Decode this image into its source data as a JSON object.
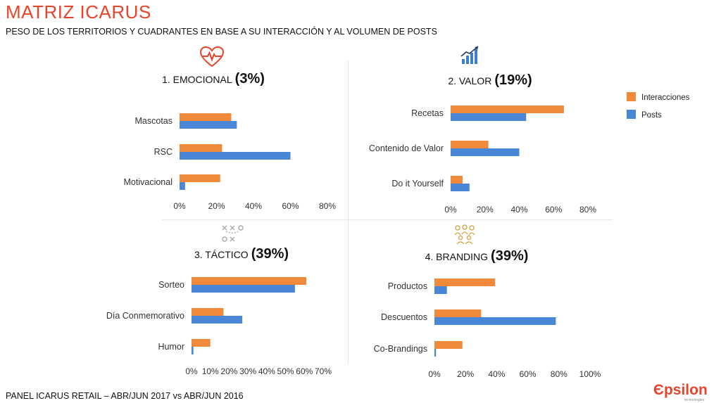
{
  "header": {
    "title": "MATRIZ ICARUS",
    "subtitle": "PESO DE LOS TERRITORIOS Y CUADRANTES EN BASE A SU INTERACCIÓN Y AL VOLUMEN DE POSTS"
  },
  "footer": {
    "text": "PANEL ICARUS RETAIL – ABR/JUN 2017 vs ABR/JUN 2016"
  },
  "brand": {
    "name": "Єpsilon",
    "sub": "technologies"
  },
  "legend": {
    "items": [
      "Interacciones",
      "Posts"
    ]
  },
  "colors": {
    "interacciones": "#f08a3a",
    "posts": "#4a86d6",
    "accent": "#e8442b"
  },
  "chart_data": [
    {
      "type": "bar",
      "orientation": "horizontal",
      "title": "1. EMOCIONAL",
      "percent_label": "(3%)",
      "icon": "heart-pulse-icon",
      "categories": [
        "Mascotas",
        "RSC",
        "Motivacional"
      ],
      "series": [
        {
          "name": "Interacciones",
          "values": [
            28,
            23,
            22
          ]
        },
        {
          "name": "Posts",
          "values": [
            31,
            60,
            3
          ]
        }
      ],
      "xlim": [
        0,
        80
      ],
      "xticks": [
        "0%",
        "20%",
        "40%",
        "60%",
        "80%"
      ]
    },
    {
      "type": "bar",
      "orientation": "horizontal",
      "title": "2. VALOR",
      "percent_label": "(19%)",
      "icon": "growth-chart-icon",
      "categories": [
        "Recetas",
        "Contenido de Valor",
        "Do it Yourself"
      ],
      "series": [
        {
          "name": "Interacciones",
          "values": [
            66,
            22,
            7
          ]
        },
        {
          "name": "Posts",
          "values": [
            44,
            40,
            11
          ]
        }
      ],
      "xlim": [
        0,
        80
      ],
      "xticks": [
        "0%",
        "20%",
        "40%",
        "60%",
        "80%"
      ]
    },
    {
      "type": "bar",
      "orientation": "horizontal",
      "title": "3. TÁCTICO",
      "percent_label": "(39%)",
      "icon": "tactics-icon",
      "categories": [
        "Sorteo",
        "Día Conmemorativo",
        "Humor"
      ],
      "series": [
        {
          "name": "Interacciones",
          "values": [
            61,
            17,
            10
          ]
        },
        {
          "name": "Posts",
          "values": [
            55,
            27,
            1
          ]
        }
      ],
      "xlim": [
        0,
        70
      ],
      "xticks": [
        "0%",
        "10%",
        "20%",
        "30%",
        "40%",
        "50%",
        "60%",
        "70%"
      ]
    },
    {
      "type": "bar",
      "orientation": "horizontal",
      "title": "4. BRANDING",
      "percent_label": "(39%)",
      "icon": "people-group-icon",
      "categories": [
        "Productos",
        "Descuentos",
        "Co-Brandings"
      ],
      "series": [
        {
          "name": "Interacciones",
          "values": [
            39,
            30,
            18
          ]
        },
        {
          "name": "Posts",
          "values": [
            8,
            78,
            1
          ]
        }
      ],
      "xlim": [
        0,
        100
      ],
      "xticks": [
        "0%",
        "20%",
        "40%",
        "60%",
        "80%",
        "100%"
      ]
    }
  ]
}
